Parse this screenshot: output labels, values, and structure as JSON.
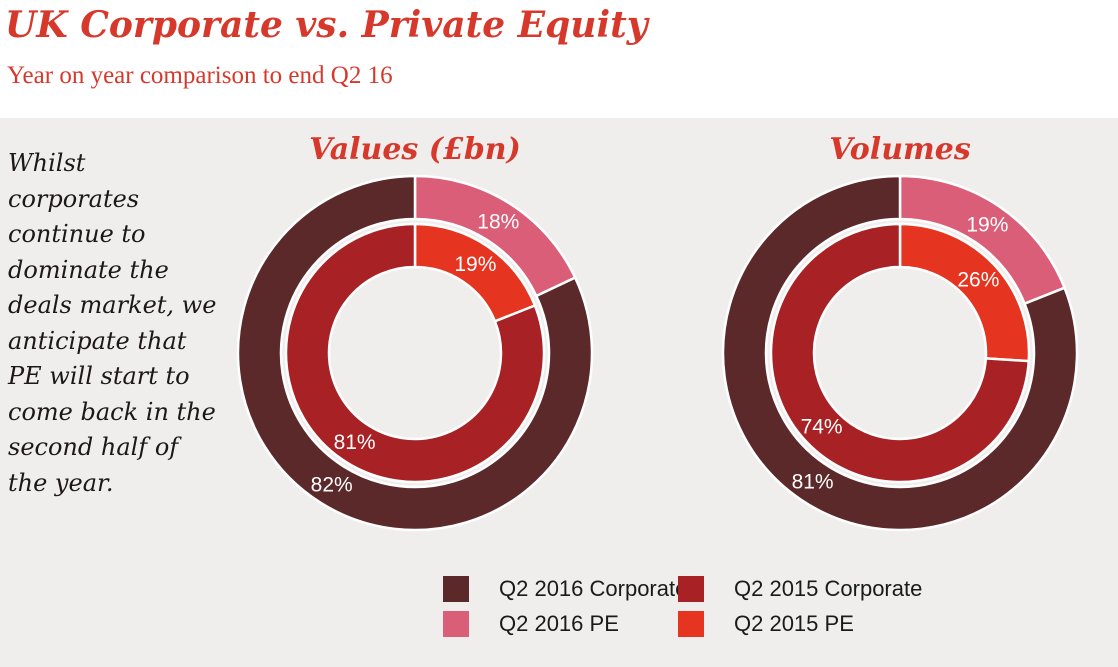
{
  "header": {
    "title": "UK Corporate vs. Private Equity",
    "subtitle": "Year on year comparison to end Q2 16"
  },
  "commentary": "Whilst corporates continue to dominate the deals market, we anticipate that PE will start to come back in the second half of the year.",
  "colors": {
    "accent_red": "#d6392b",
    "panel_background": "#efeeed",
    "header_background": "#ffffff",
    "segment_label_text": "#ffffff",
    "commentary_text": "#1d1715",
    "legend_text": "#1a1a1a",
    "ring_separator": "#ffffff"
  },
  "legend": {
    "items": [
      {
        "label": "Q2 2016 Corporate",
        "color": "#5c292b"
      },
      {
        "label": "Q2 2016 PE",
        "color": "#db5e78"
      },
      {
        "label": "Q2 2015 Corporate",
        "color": "#a82124"
      },
      {
        "label": "Q2 2015 PE",
        "color": "#e5341f"
      }
    ]
  },
  "chart_data": [
    {
      "type": "donut",
      "title": "Values (£bn)",
      "start_angle_deg": 0,
      "direction": "clockwise",
      "rings": [
        {
          "name": "Q2 2016",
          "position": "outer",
          "segments": [
            {
              "label": "Q2 2016 PE",
              "value": 18
            },
            {
              "label": "Q2 2016 Corporate",
              "value": 82
            }
          ]
        },
        {
          "name": "Q2 2015",
          "position": "inner",
          "segments": [
            {
              "label": "Q2 2015 PE",
              "value": 19
            },
            {
              "label": "Q2 2015 Corporate",
              "value": 81
            }
          ]
        }
      ]
    },
    {
      "type": "donut",
      "title": "Volumes",
      "start_angle_deg": 0,
      "direction": "clockwise",
      "rings": [
        {
          "name": "Q2 2016",
          "position": "outer",
          "segments": [
            {
              "label": "Q2 2016 PE",
              "value": 19
            },
            {
              "label": "Q2 2016 Corporate",
              "value": 81
            }
          ]
        },
        {
          "name": "Q2 2015",
          "position": "inner",
          "segments": [
            {
              "label": "Q2 2015 PE",
              "value": 26
            },
            {
              "label": "Q2 2015 Corporate",
              "value": 74
            }
          ]
        }
      ]
    }
  ]
}
